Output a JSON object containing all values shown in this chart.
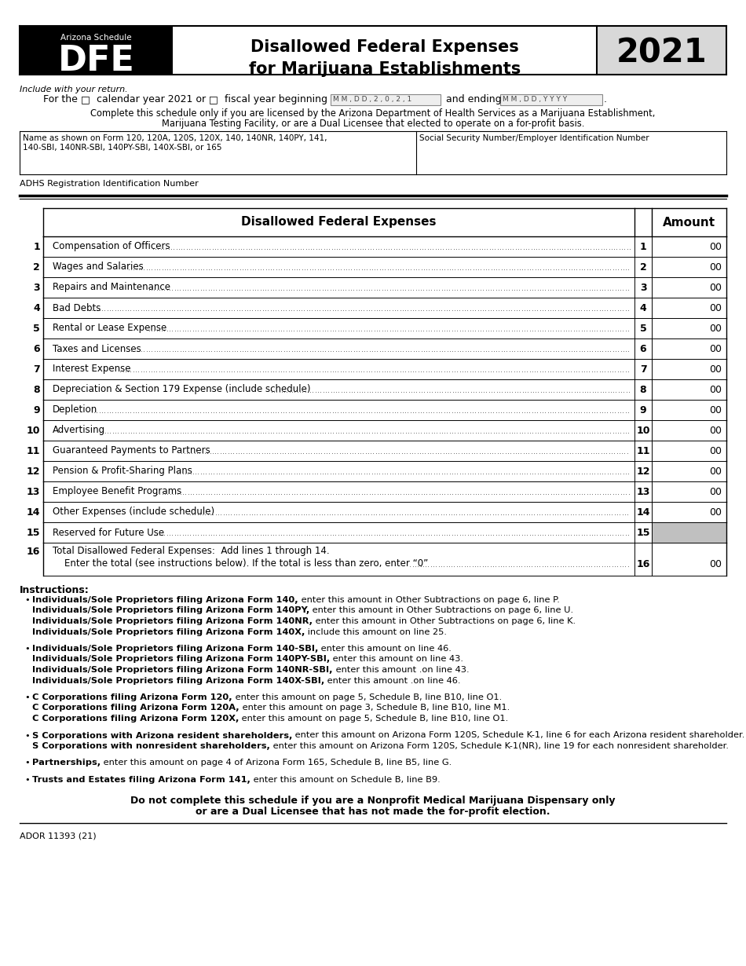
{
  "page_bg": "#ffffff",
  "header": {
    "az_schedule_label": "Arizona Schedule",
    "form_name": "DFE",
    "title_line1": "Disallowed Federal Expenses",
    "title_line2": "for Marijuana Establishments",
    "year": "2021",
    "include_text": "Include with your return."
  },
  "intro": {
    "line2": "Complete this schedule only if you are licensed by the Arizona Department of Health Services as a Marijuana Establishment,",
    "line3": "Marijuana Testing Facility, or are a Dual Licensee that elected to operate on a for-profit basis.",
    "name_label1": "Name as shown on Form 120, 120A, 120S, 120X, 140, 140NR, 140PY, 141,",
    "name_label2": "140-SBI, 140NR-SBI, 140PY-SBI, 140X-SBI, or 165",
    "ssn_label": "Social Security Number/Employer Identification Number",
    "adhs_label": "ADHS Registration Identification Number"
  },
  "table": {
    "header_col1": "Disallowed Federal Expenses",
    "header_col2": "Amount",
    "rows": [
      {
        "num": "1",
        "label": "Compensation of Officers",
        "gray": false
      },
      {
        "num": "2",
        "label": "Wages and Salaries",
        "gray": false
      },
      {
        "num": "3",
        "label": "Repairs and Maintenance",
        "gray": false
      },
      {
        "num": "4",
        "label": "Bad Debts",
        "gray": false
      },
      {
        "num": "5",
        "label": "Rental or Lease Expense",
        "gray": false
      },
      {
        "num": "6",
        "label": "Taxes and Licenses",
        "gray": false
      },
      {
        "num": "7",
        "label": "Interest Expense",
        "gray": false
      },
      {
        "num": "8",
        "label": "Depreciation & Section 179 Expense (include schedule)",
        "gray": false
      },
      {
        "num": "9",
        "label": "Depletion",
        "gray": false
      },
      {
        "num": "10",
        "label": "Advertising",
        "gray": false
      },
      {
        "num": "11",
        "label": "Guaranteed Payments to Partners",
        "gray": false
      },
      {
        "num": "12",
        "label": "Pension & Profit-Sharing Plans",
        "gray": false
      },
      {
        "num": "13",
        "label": "Employee Benefit Programs",
        "gray": false
      },
      {
        "num": "14",
        "label": "Other Expenses (include schedule)",
        "gray": false
      },
      {
        "num": "15",
        "label": "Reserved for Future Use",
        "gray": true
      },
      {
        "num": "16",
        "label16a": "Total Disallowed Federal Expenses:  Add lines 1 through 14.",
        "label16b": "    Enter the total (see instructions below). If the total is less than zero, enter “0”",
        "gray": false
      }
    ]
  },
  "inst_title": "Instructions:",
  "bullets": [
    {
      "lines": [
        {
          "bold": "Individuals/Sole Proprietors filing Arizona Form 140,",
          "rest": " enter this amount in Other Subtractions on page 6, line P."
        },
        {
          "bold": "Individuals/Sole Proprietors filing Arizona Form 140PY,",
          "rest": " enter this amount in Other Subtractions on page 6, line U."
        },
        {
          "bold": "Individuals/Sole Proprietors filing Arizona Form 140NR,",
          "rest": " enter this amount in Other Subtractions on page 6, line K."
        },
        {
          "bold": "Individuals/Sole Proprietors filing Arizona Form 140X,",
          "rest": " include this amount on line 25."
        }
      ]
    },
    {
      "lines": [
        {
          "bold": "Individuals/Sole Proprietors filing Arizona Form 140-SBI,",
          "rest": " enter this amount on line 46."
        },
        {
          "bold": "Individuals/Sole Proprietors filing Arizona Form 140PY-SBI,",
          "rest": " enter this amount on line 43."
        },
        {
          "bold": "Individuals/Sole Proprietors filing Arizona Form 140NR-SBI,",
          "rest": " enter this amount .on line 43."
        },
        {
          "bold": "Individuals/Sole Proprietors filing Arizona Form 140X-SBI,",
          "rest": " enter this amount .on line 46."
        }
      ]
    },
    {
      "lines": [
        {
          "bold": "C Corporations filing Arizona Form 120,",
          "rest": " enter this amount on page 5, Schedule B, line B10, line O1."
        },
        {
          "bold": "C Corporations filing Arizona Form 120A,",
          "rest": " enter this amount on page 3, Schedule B, line B10, line M1."
        },
        {
          "bold": "C Corporations filing Arizona Form 120X,",
          "rest": " enter this amount on page 5, Schedule B, line B10, line O1."
        }
      ]
    },
    {
      "lines": [
        {
          "bold": "S Corporations with Arizona resident shareholders,",
          "rest": " enter this amount on Arizona Form 120S, Schedule K-1, line 6 for each Arizona resident shareholder."
        },
        {
          "bold": "S Corporations with nonresident shareholders,",
          "rest": " enter this amount on Arizona Form 120S, Schedule K-1(NR), line 19 for each nonresident shareholder."
        }
      ]
    },
    {
      "lines": [
        {
          "bold": "Partnerships,",
          "rest": " enter this amount on page 4 of Arizona Form 165, Schedule B, line B5, line G."
        }
      ]
    },
    {
      "lines": [
        {
          "bold": "Trusts and Estates filing Arizona Form 141,",
          "rest": " enter this amount on Schedule B, line B9."
        }
      ]
    }
  ],
  "footer_line1": "Do not complete this schedule if you are a Nonprofit Medical Marijuana Dispensary only",
  "footer_line2": "or are a Dual Licensee that has not made the for-profit election.",
  "form_id": "ADOR 11393 (21)"
}
